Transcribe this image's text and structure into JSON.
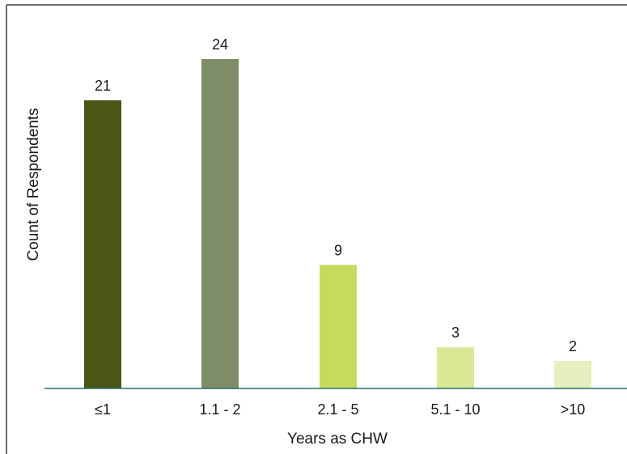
{
  "chart_data": {
    "type": "bar",
    "title": "",
    "xlabel": "Years as CHW",
    "ylabel": "Count of Respondents",
    "categories": [
      "≤1",
      "1.1 - 2",
      "2.1 - 5",
      "5.1 - 10",
      ">10"
    ],
    "values": [
      21,
      24,
      9,
      3,
      2
    ],
    "data_labels": [
      "21",
      "24",
      "9",
      "3",
      "2"
    ],
    "ylim": [
      0,
      24
    ],
    "grid": false,
    "legend": "none",
    "colors": [
      "#4a5618",
      "#7e8d68",
      "#c8da5e",
      "#dbe896",
      "#e6efbe"
    ],
    "axis_color": "#2e6e6a",
    "frame_color": "#3a3a3a"
  }
}
